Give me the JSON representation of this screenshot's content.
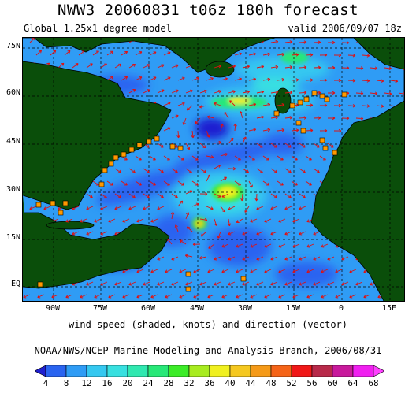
{
  "header": {
    "title": "NWW3 20060831 t06z 180h forecast",
    "model_label": "Global 1.25x1 degree model",
    "valid_label": "valid 2006/09/07 18z"
  },
  "map": {
    "lat_labels": [
      "75N",
      "60N",
      "45N",
      "30N",
      "15N",
      "EQ"
    ],
    "lon_labels": [
      "90W",
      "75W",
      "60W",
      "45W",
      "30W",
      "15W",
      "0",
      "15E"
    ],
    "land_color": "#0a4e0a",
    "vector_color": "#e01010",
    "station_color": "#ff9900"
  },
  "caption": "wind speed (shaded, knots) and direction (vector)",
  "credit": "NOAA/NWS/NCEP Marine Modeling and Analysis Branch, 2006/08/31",
  "legend": {
    "ticks": [
      "4",
      "8",
      "12",
      "16",
      "20",
      "24",
      "28",
      "32",
      "36",
      "40",
      "44",
      "48",
      "52",
      "56",
      "60",
      "64",
      "68"
    ],
    "colors": [
      "#1f1fd0",
      "#2a64f0",
      "#2f9cf5",
      "#35c8f0",
      "#38e0e0",
      "#30e8b0",
      "#28e878",
      "#3cec28",
      "#a8ec20",
      "#f0f020",
      "#f5c820",
      "#f59a18",
      "#f56418",
      "#f01818",
      "#b82a4a",
      "#c81a9c",
      "#f020f0",
      "#ff40ff"
    ]
  }
}
